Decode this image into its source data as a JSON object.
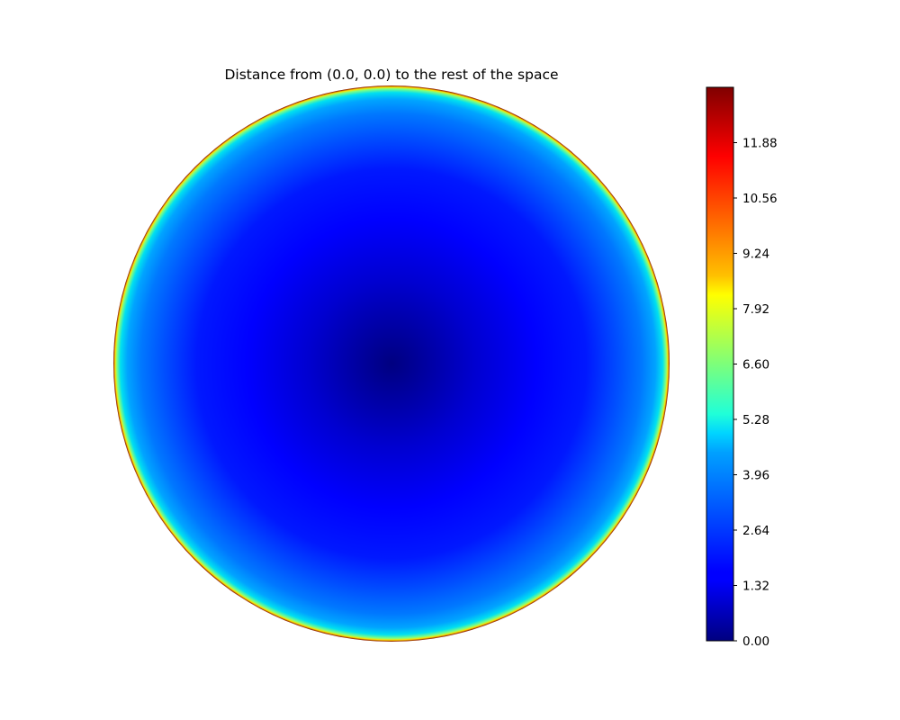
{
  "chart_data": {
    "type": "heatmap",
    "title": "Distance from (0.0, 0.0) to the rest of the space",
    "center": [
      0.0,
      0.0
    ],
    "grid": false,
    "axes_visible": false,
    "colormap": "jet",
    "colorbar": {
      "location": "right",
      "range": [
        0.0,
        13.2
      ],
      "ticks": [
        0.0,
        1.32,
        2.64,
        3.96,
        5.28,
        6.6,
        7.92,
        9.24,
        10.56,
        11.88
      ],
      "tick_labels": [
        "0.00",
        "1.32",
        "2.64",
        "3.96",
        "5.28",
        "6.60",
        "7.92",
        "9.24",
        "10.56",
        "11.88"
      ]
    }
  }
}
